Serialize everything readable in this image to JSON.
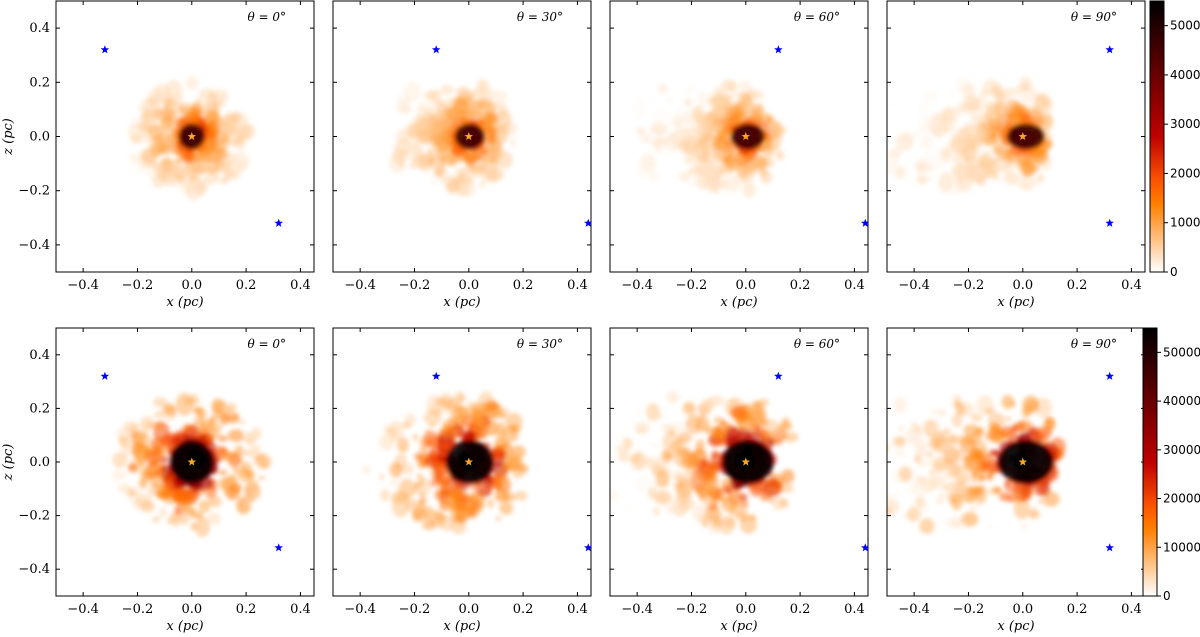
{
  "chart_data": [
    {
      "type": "heatmap",
      "row": 1,
      "panels": [
        {
          "theta_label": "θ = 0°",
          "view_angle_deg": 0
        },
        {
          "theta_label": "θ = 30°",
          "view_angle_deg": 30
        },
        {
          "theta_label": "θ = 60°",
          "view_angle_deg": 60
        },
        {
          "theta_label": "θ = 90°",
          "view_angle_deg": 90
        }
      ],
      "xlabel": "x (pc)",
      "ylabel": "z (pc)",
      "xlim": [
        -0.5,
        0.45
      ],
      "ylim": [
        -0.5,
        0.5
      ],
      "x_ticks": [
        -0.4,
        -0.2,
        0.0,
        0.2,
        0.4
      ],
      "y_ticks": [
        -0.4,
        -0.2,
        0.0,
        0.2,
        0.4
      ],
      "x_tick_labels": [
        "−0.4",
        "−0.2",
        "0.0",
        "0.2",
        "0.4"
      ],
      "y_tick_labels": [
        "−0.4",
        "−0.2",
        "0.0",
        "0.2",
        "0.4"
      ],
      "colorbar": {
        "min": 0,
        "max": 5500,
        "ticks": [
          0,
          1000,
          2000,
          3000,
          4000,
          5000
        ],
        "tick_labels": [
          "0",
          "1000",
          "2000",
          "3000",
          "4000",
          "5000"
        ],
        "colormap": "gist_heat_r"
      },
      "stars": {
        "central_color": "#f5a623",
        "companion_color": "#0000ff",
        "positions_by_panel": [
          [
            [
              0.0,
              0.0
            ],
            [
              -0.32,
              0.32
            ],
            [
              0.32,
              -0.32
            ]
          ],
          [
            [
              0.0,
              0.0
            ],
            [
              -0.12,
              0.32
            ],
            [
              0.44,
              -0.32
            ]
          ],
          [
            [
              0.0,
              0.0
            ],
            [
              0.12,
              0.32
            ],
            [
              0.44,
              -0.32
            ]
          ],
          [
            [
              0.0,
              0.0
            ],
            [
              0.32,
              0.32
            ],
            [
              0.32,
              -0.32
            ]
          ]
        ]
      }
    },
    {
      "type": "heatmap",
      "row": 2,
      "panels": [
        {
          "theta_label": "θ = 0°",
          "view_angle_deg": 0
        },
        {
          "theta_label": "θ = 30°",
          "view_angle_deg": 30
        },
        {
          "theta_label": "θ = 60°",
          "view_angle_deg": 60
        },
        {
          "theta_label": "θ = 90°",
          "view_angle_deg": 90
        }
      ],
      "xlabel": "x (pc)",
      "ylabel": "z (pc)",
      "xlim": [
        -0.5,
        0.45
      ],
      "ylim": [
        -0.5,
        0.5
      ],
      "x_ticks": [
        -0.4,
        -0.2,
        0.0,
        0.2,
        0.4
      ],
      "y_ticks": [
        -0.4,
        -0.2,
        0.0,
        0.2,
        0.4
      ],
      "x_tick_labels": [
        "−0.4",
        "−0.2",
        "0.0",
        "0.2",
        "0.4"
      ],
      "y_tick_labels": [
        "−0.4",
        "−0.2",
        "0.0",
        "0.2",
        "0.4"
      ],
      "colorbar": {
        "min": 0,
        "max": 55000,
        "ticks": [
          0,
          10000,
          20000,
          30000,
          40000,
          50000
        ],
        "tick_labels": [
          "0",
          "10000",
          "20000",
          "30000",
          "40000",
          "50000"
        ],
        "colormap": "gist_heat_r"
      },
      "stars": {
        "central_color": "#f5a623",
        "companion_color": "#0000ff",
        "positions_by_panel": [
          [
            [
              0.0,
              0.0
            ],
            [
              -0.32,
              0.32
            ],
            [
              0.32,
              -0.32
            ]
          ],
          [
            [
              0.0,
              0.0
            ],
            [
              -0.12,
              0.32
            ],
            [
              0.44,
              -0.32
            ]
          ],
          [
            [
              0.0,
              0.0
            ],
            [
              0.12,
              0.32
            ],
            [
              0.44,
              -0.32
            ]
          ],
          [
            [
              0.0,
              0.0
            ],
            [
              0.32,
              0.32
            ],
            [
              0.32,
              -0.32
            ]
          ]
        ]
      }
    }
  ]
}
